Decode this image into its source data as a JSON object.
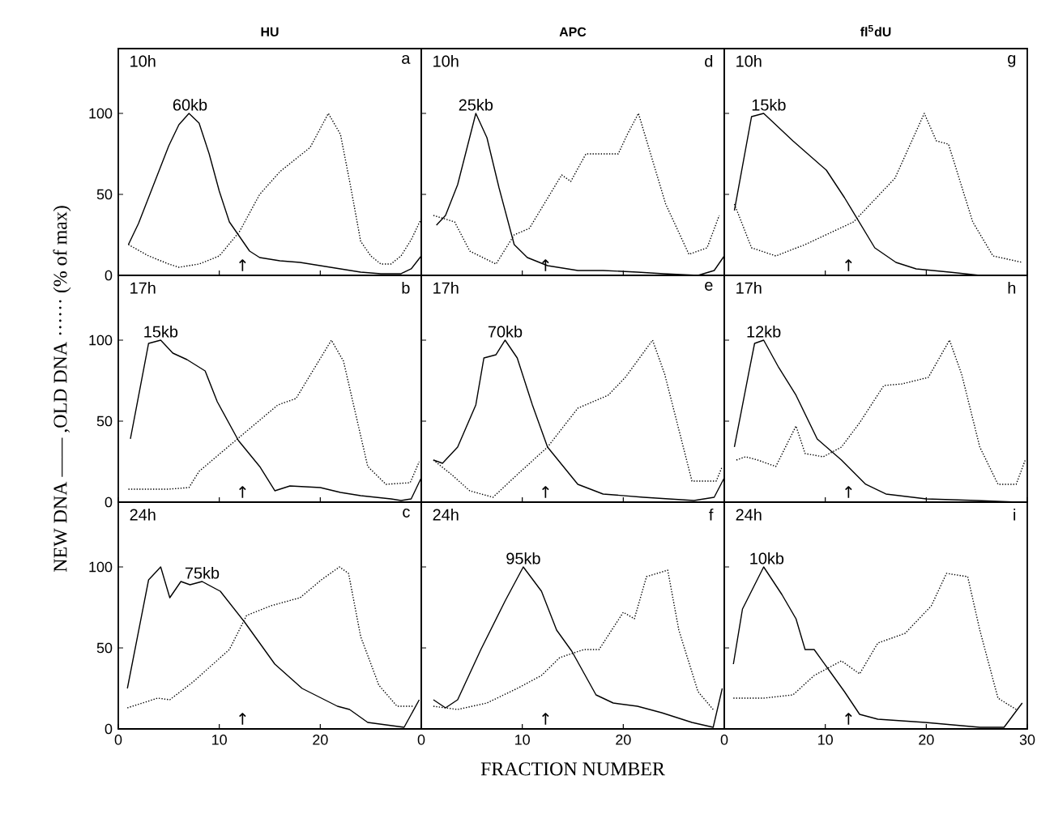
{
  "chart_data": [
    {
      "type": "line",
      "title": "HU",
      "xlim": [
        0,
        30
      ],
      "ylim": [
        0,
        140
      ],
      "xticks": [
        0,
        10,
        20
      ],
      "yticks": [
        0,
        50,
        100
      ],
      "tick_labels": "y",
      "annotations": [
        "10h",
        "a",
        {
          "text": "60kb",
          "x": 7.1,
          "y": 100
        },
        "↑"
      ],
      "series": [
        {
          "color": "#000000",
          "line_style": "solid",
          "x": [
            1,
            2,
            3,
            4,
            5,
            6,
            7,
            8,
            9,
            10,
            11,
            12,
            13,
            14,
            16,
            18,
            20,
            22,
            24,
            26,
            28,
            29,
            30
          ],
          "values": [
            19,
            32,
            48,
            64,
            80,
            93,
            100,
            94,
            75,
            52,
            33,
            24,
            15,
            11,
            9,
            8,
            6,
            4,
            2,
            1,
            1,
            4,
            12
          ]
        },
        {
          "color": "#000000",
          "line_style": "dotted",
          "x": [
            1,
            3,
            5,
            6,
            8,
            10,
            12,
            14,
            16,
            18,
            19,
            20.8,
            22,
            23,
            24,
            25,
            26,
            27,
            28,
            29,
            30
          ],
          "values": [
            19,
            12,
            7,
            5,
            7,
            12,
            27,
            50,
            64,
            74,
            79,
            100,
            87,
            55,
            21,
            12,
            7,
            7,
            12,
            22,
            35
          ]
        }
      ]
    },
    {
      "type": "line",
      "title": "APC",
      "xlim": [
        0,
        30
      ],
      "ylim": [
        0,
        140
      ],
      "xticks": [
        0,
        10,
        20
      ],
      "yticks": [
        0,
        50,
        100
      ],
      "tick_labels": false,
      "annotations": [
        "10h",
        "d",
        {
          "text": "25kb",
          "x": 5.4,
          "y": 100
        },
        "↑"
      ],
      "series": [
        {
          "color": "#000000",
          "line_style": "solid",
          "x": [
            1.5,
            2.4,
            3.6,
            5.4,
            6.5,
            7.7,
            9.2,
            10.5,
            12.5,
            15.5,
            18,
            21.4,
            24,
            27.4,
            29,
            30
          ],
          "values": [
            31,
            37,
            56,
            100,
            85,
            54,
            19,
            11,
            6,
            3,
            3,
            2,
            1,
            0,
            3,
            12
          ]
        },
        {
          "color": "#000000",
          "line_style": "dotted",
          "x": [
            1.2,
            3.3,
            4.8,
            7.4,
            9.2,
            10.7,
            13.9,
            14.8,
            16.3,
            19.5,
            20.4,
            21.5,
            24.2,
            26.5,
            28.3,
            29.5
          ],
          "values": [
            37,
            33,
            15,
            7,
            25,
            29,
            62,
            58,
            75,
            75,
            87,
            100,
            44,
            13,
            17,
            37
          ]
        }
      ]
    },
    {
      "type": "line",
      "title": "fl$^{5}$dU",
      "xlim": [
        0,
        30
      ],
      "ylim": [
        0,
        140
      ],
      "xticks": [
        0,
        10,
        20,
        30
      ],
      "yticks": [
        0,
        50,
        100
      ],
      "tick_labels": false,
      "annotations": [
        "10h",
        "g",
        {
          "text": "15kb",
          "x": 4.4,
          "y": 100
        },
        "↑"
      ],
      "series": [
        {
          "color": "#000000",
          "line_style": "solid",
          "x": [
            1,
            2.7,
            3.9,
            6.8,
            10.1,
            11.9,
            14.9,
            17,
            19,
            22.3,
            25.3,
            29.5,
            30
          ],
          "values": [
            40,
            98,
            100,
            83,
            65,
            48,
            17,
            8,
            4,
            2,
            0,
            0,
            0
          ]
        },
        {
          "color": "#000000",
          "line_style": "dotted",
          "x": [
            1,
            2.7,
            5.1,
            8,
            12.8,
            16.9,
            19.8,
            21,
            22.2,
            24.6,
            26.6,
            29.5
          ],
          "values": [
            44,
            17,
            12,
            19,
            33,
            60,
            100,
            83,
            81,
            33,
            12,
            8
          ]
        }
      ]
    },
    {
      "type": "line",
      "xlim": [
        0,
        30
      ],
      "ylim": [
        0,
        140
      ],
      "xticks": [
        0,
        10,
        20
      ],
      "yticks": [
        0,
        50,
        100
      ],
      "tick_labels": "y",
      "ylabel": "NEW DNA —— ,OLD DNA ······ (% of max)",
      "annotations": [
        "17h",
        "b",
        {
          "text": "15kb",
          "x": 4.2,
          "y": 100
        },
        "↑"
      ],
      "series": [
        {
          "color": "#000000",
          "line_style": "solid",
          "x": [
            1.2,
            3,
            4.2,
            5.4,
            6.8,
            8.6,
            9.8,
            11.9,
            14,
            15.5,
            17,
            20,
            22,
            24,
            27,
            28,
            29,
            30
          ],
          "values": [
            39,
            98,
            100,
            92,
            88,
            81,
            62,
            38,
            22,
            7,
            10,
            9,
            6,
            4,
            2,
            1,
            2,
            15
          ]
        },
        {
          "color": "#000000",
          "line_style": "dotted",
          "x": [
            1,
            3,
            5,
            7,
            8,
            11.6,
            15.8,
            17.6,
            21.1,
            22.3,
            24.7,
            26.5,
            28.9,
            29.8
          ],
          "values": [
            8,
            8,
            8,
            9,
            19,
            38,
            60,
            64,
            100,
            87,
            22,
            11,
            12,
            25
          ]
        }
      ]
    },
    {
      "type": "line",
      "xlim": [
        0,
        30
      ],
      "ylim": [
        0,
        140
      ],
      "xticks": [
        0,
        10,
        20
      ],
      "yticks": [
        0,
        50,
        100
      ],
      "tick_labels": false,
      "annotations": [
        "17h",
        "e",
        {
          "text": "70kb",
          "x": 8.3,
          "y": 100
        },
        "↑"
      ],
      "series": [
        {
          "color": "#000000",
          "line_style": "solid",
          "x": [
            1.2,
            2.1,
            3.6,
            5.4,
            6.2,
            7.4,
            8.3,
            9.5,
            11,
            12.5,
            15.5,
            18,
            22,
            27,
            29,
            30
          ],
          "values": [
            26,
            24,
            34,
            60,
            89,
            91,
            100,
            89,
            60,
            34,
            11,
            5,
            3,
            1,
            3,
            15
          ]
        },
        {
          "color": "#000000",
          "line_style": "dotted",
          "x": [
            1.2,
            3,
            4.8,
            7.1,
            9.5,
            12.5,
            15.5,
            18.5,
            20.2,
            22.9,
            24.1,
            26.8,
            29.2,
            29.8
          ],
          "values": [
            26,
            17,
            7,
            3,
            17,
            34,
            58,
            66,
            77,
            100,
            79,
            13,
            13,
            22
          ]
        }
      ]
    },
    {
      "type": "line",
      "xlim": [
        0,
        30
      ],
      "ylim": [
        0,
        140
      ],
      "xticks": [
        0,
        10,
        20,
        30
      ],
      "yticks": [
        0,
        50,
        100
      ],
      "tick_labels": false,
      "annotations": [
        "17h",
        "h",
        {
          "text": "12kb",
          "x": 3.9,
          "y": 100
        },
        "↑"
      ],
      "series": [
        {
          "color": "#000000",
          "line_style": "solid",
          "x": [
            1,
            2.4,
            3,
            3.9,
            5.4,
            7.1,
            9.2,
            11.6,
            14,
            16,
            20,
            25,
            29,
            30
          ],
          "values": [
            34,
            79,
            98,
            100,
            83,
            66,
            39,
            26,
            11,
            5,
            2,
            1,
            0,
            0
          ]
        },
        {
          "color": "#000000",
          "line_style": "dotted",
          "x": [
            1.2,
            2.1,
            3.3,
            5.1,
            7.1,
            8,
            9.8,
            11.6,
            13.4,
            15.8,
            17.6,
            20.2,
            22.3,
            23.5,
            25.3,
            27.1,
            28.9,
            29.8
          ],
          "values": [
            26,
            28,
            26,
            22,
            47,
            30,
            28,
            34,
            49,
            72,
            73,
            77,
            100,
            79,
            34,
            11,
            11,
            26
          ]
        }
      ]
    },
    {
      "type": "line",
      "xlim": [
        0,
        30
      ],
      "ylim": [
        0,
        140
      ],
      "xticks": [
        0,
        10,
        20
      ],
      "yticks": [
        0,
        50,
        100
      ],
      "annotations": [
        "24h",
        "c",
        {
          "text": "75kb",
          "x": 8.3,
          "y": 91
        },
        "↑"
      ],
      "series": [
        {
          "color": "#000000",
          "line_style": "solid",
          "x": [
            0.9,
            3,
            4.2,
            5.1,
            6.2,
            7.1,
            8.3,
            10.1,
            12.5,
            15.5,
            18.2,
            21.7,
            22.9,
            24.7,
            28.3,
            29.8
          ],
          "values": [
            25,
            92,
            100,
            81,
            91,
            89,
            91,
            85,
            66,
            40,
            25,
            14,
            12,
            4,
            1,
            18
          ]
        },
        {
          "color": "#000000",
          "line_style": "dotted",
          "x": [
            0.9,
            3.9,
            5.1,
            7.4,
            11,
            12.7,
            15.1,
            18,
            20.1,
            21.9,
            22.8,
            24,
            25.8,
            27.6,
            29.2
          ],
          "values": [
            13,
            19,
            18,
            29,
            49,
            70,
            76,
            81,
            92,
            100,
            96,
            57,
            27,
            14,
            14
          ]
        }
      ]
    },
    {
      "type": "line",
      "xlim": [
        0,
        30
      ],
      "ylim": [
        0,
        140
      ],
      "xticks": [
        0,
        10,
        20
      ],
      "yticks": [
        0,
        50,
        100
      ],
      "tick_labels": "x",
      "xlabel": "FRACTION NUMBER",
      "annotations": [
        "24h",
        "f",
        {
          "text": "95kb",
          "x": 10.1,
          "y": 100
        },
        "↑"
      ],
      "series": [
        {
          "color": "#000000",
          "line_style": "solid",
          "x": [
            1.2,
            2.4,
            3.6,
            5.9,
            8.3,
            10.1,
            11.9,
            13.4,
            14.9,
            17.3,
            19,
            21.4,
            23.8,
            26.8,
            28.9,
            29.8
          ],
          "values": [
            18,
            13,
            18,
            49,
            79,
            100,
            85,
            61,
            48,
            21,
            16,
            14,
            10,
            4,
            1,
            25
          ]
        },
        {
          "color": "#000000",
          "line_style": "dotted",
          "x": [
            1.2,
            3.6,
            6.5,
            9.5,
            11.9,
            13.7,
            16.1,
            17.6,
            20,
            21.1,
            22.3,
            24.4,
            25.5,
            27.4,
            28.9
          ],
          "values": [
            14,
            12,
            16,
            25,
            33,
            44,
            49,
            49,
            72,
            68,
            94,
            98,
            61,
            23,
            12
          ]
        }
      ]
    },
    {
      "type": "line",
      "xlim": [
        0,
        30
      ],
      "ylim": [
        0,
        140
      ],
      "xticks": [
        0,
        10,
        20,
        30
      ],
      "yticks": [
        0,
        50,
        100
      ],
      "tick_labels": "x",
      "annotations": [
        "24h",
        "i",
        {
          "text": "10kb",
          "x": 4.2,
          "y": 100
        },
        "↑"
      ],
      "series": [
        {
          "color": "#000000",
          "line_style": "solid",
          "x": [
            0.9,
            1.8,
            3.9,
            5.7,
            7.1,
            8,
            8.9,
            10.4,
            11.9,
            13.4,
            15.2,
            19.9,
            25.3,
            27.7,
            29.5
          ],
          "values": [
            40,
            74,
            100,
            83,
            68,
            49,
            49,
            36,
            23,
            9,
            6,
            4,
            1,
            1,
            16
          ]
        },
        {
          "color": "#000000",
          "line_style": "dotted",
          "x": [
            0.9,
            3.9,
            6.8,
            8.9,
            11.6,
            13.4,
            15.2,
            17.9,
            20.5,
            22,
            24.1,
            25.3,
            27.1,
            28.9
          ],
          "values": [
            19,
            19,
            21,
            33,
            42,
            34,
            53,
            59,
            76,
            96,
            94,
            61,
            19,
            12
          ]
        }
      ]
    }
  ]
}
